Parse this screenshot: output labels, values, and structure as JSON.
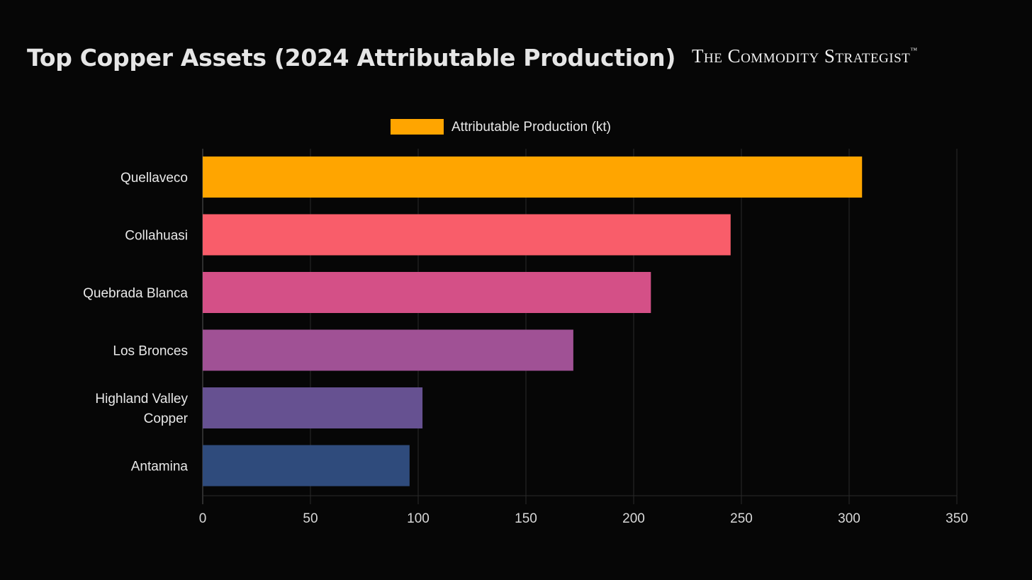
{
  "header": {
    "title": "Top Copper Assets (2024 Attributable Production)",
    "logo_text": "The Commodity  Strategist",
    "logo_mark": "™"
  },
  "chart_data": {
    "type": "bar",
    "orientation": "horizontal",
    "title": "Top Copper Assets (2024 Attributable Production)",
    "categories": [
      [
        "Quellaveco"
      ],
      [
        "Collahuasi"
      ],
      [
        "Quebrada Blanca"
      ],
      [
        "Los Bronces"
      ],
      [
        "Highland Valley",
        "Copper"
      ],
      [
        "Antamina"
      ]
    ],
    "values": [
      306,
      245,
      208,
      172,
      102,
      96
    ],
    "colors": [
      "#ffa500",
      "#f95d6a",
      "#d45087",
      "#a05195",
      "#665191",
      "#2f4b7c"
    ],
    "legend": {
      "label": "Attributable Production (kt)",
      "color": "#ffa500",
      "placement": "top-center"
    },
    "xlabel": "",
    "ylabel": "",
    "xlim": [
      0,
      350
    ],
    "xticks": [
      0,
      50,
      100,
      150,
      200,
      250,
      300,
      350
    ],
    "grid": true
  }
}
